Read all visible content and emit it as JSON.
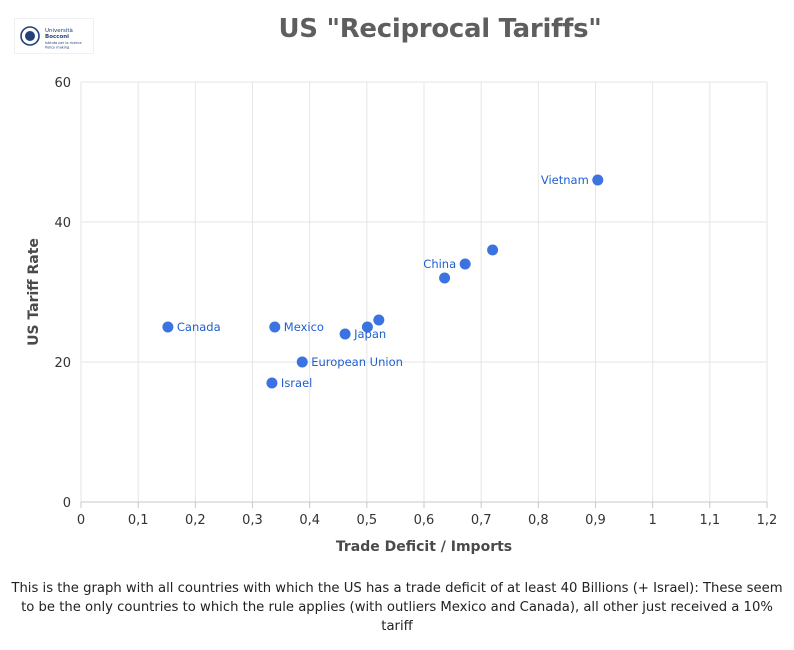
{
  "logo": {
    "line1": "Università",
    "line2": "Bocconi",
    "sub1": "Istituto per la ricerca",
    "sub2": "Policy making",
    "icon": "bocconi-seal-icon"
  },
  "chart_data": {
    "type": "scatter",
    "title": "US \"Reciprocal Tariffs\"",
    "xlabel": "Trade Deficit / Imports",
    "ylabel": "US Tariff Rate",
    "xlim": [
      0,
      1.2
    ],
    "ylim": [
      0,
      60
    ],
    "x_ticks": [
      "0",
      "0,1",
      "0,2",
      "0,3",
      "0,4",
      "0,5",
      "0,6",
      "0,7",
      "0,8",
      "0,9",
      "1",
      "1,1",
      "1,2"
    ],
    "y_ticks": [
      "0",
      "20",
      "40",
      "60"
    ],
    "grid": true,
    "point_color": "#3b73e0",
    "points": [
      {
        "x": 0.152,
        "y": 25,
        "label": "Canada"
      },
      {
        "x": 0.339,
        "y": 25,
        "label": "Mexico"
      },
      {
        "x": 0.387,
        "y": 20,
        "label": "European Union"
      },
      {
        "x": 0.334,
        "y": 17,
        "label": "Israel"
      },
      {
        "x": 0.462,
        "y": 24,
        "label": "Japan"
      },
      {
        "x": 0.501,
        "y": 25,
        "label": ""
      },
      {
        "x": 0.521,
        "y": 26,
        "label": ""
      },
      {
        "x": 0.636,
        "y": 32,
        "label": ""
      },
      {
        "x": 0.672,
        "y": 34,
        "label": "China"
      },
      {
        "x": 0.72,
        "y": 36,
        "label": ""
      },
      {
        "x": 0.904,
        "y": 46,
        "label": "Vietnam"
      }
    ]
  },
  "caption": "This is the graph with all countries with which the US has a trade deficit of at least 40 Billions (+ Israel): These seem to be the only countries to which the rule applies (with outliers Mexico and Canada), all other just received a 10% tariff"
}
